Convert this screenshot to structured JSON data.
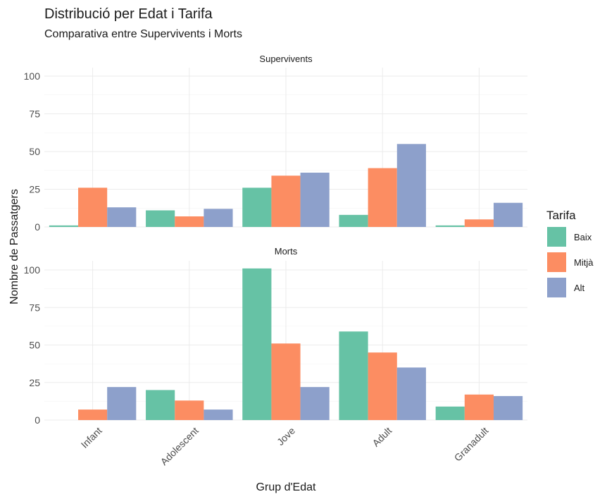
{
  "chart_data": {
    "type": "bar",
    "title": "Distribució per Edat i Tarifa",
    "subtitle": "Comparativa entre Supervivents i Morts",
    "xlabel": "Grup d'Edat",
    "ylabel": "Nombre de Passatgers",
    "categories": [
      "Infant",
      "Adolescent",
      "Jove",
      "Adult",
      "Granadult"
    ],
    "ylim": [
      0,
      105
    ],
    "yticks": [
      0,
      25,
      50,
      75,
      100
    ],
    "grid": true,
    "legend": {
      "title": "Tarifa",
      "position": "right",
      "entries": [
        "Baix",
        "Mitjà",
        "Alt"
      ]
    },
    "colors": {
      "Baix": "#66c2a5",
      "Mitjà": "#fc8d62",
      "Alt": "#8da0cb"
    },
    "facets": [
      {
        "label": "Supervivents",
        "series": [
          {
            "name": "Baix",
            "values": [
              1,
              11,
              26,
              8,
              1
            ]
          },
          {
            "name": "Mitjà",
            "values": [
              26,
              7,
              34,
              39,
              5
            ]
          },
          {
            "name": "Alt",
            "values": [
              13,
              12,
              36,
              55,
              16
            ]
          }
        ]
      },
      {
        "label": "Morts",
        "series": [
          {
            "name": "Baix",
            "values": [
              0,
              20,
              101,
              59,
              9
            ]
          },
          {
            "name": "Mitjà",
            "values": [
              7,
              13,
              51,
              45,
              17
            ]
          },
          {
            "name": "Alt",
            "values": [
              22,
              7,
              22,
              35,
              16
            ]
          }
        ]
      }
    ]
  }
}
